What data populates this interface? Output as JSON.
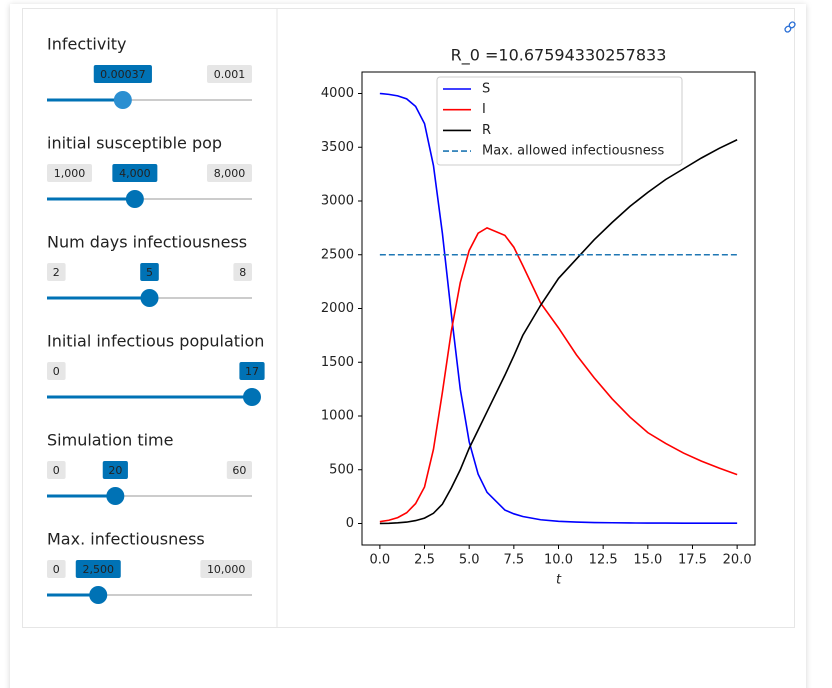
{
  "sliders": [
    {
      "label": "Infectivity",
      "min": 0,
      "max": 0.001,
      "value": 0.00037,
      "hidden": [
        "min"
      ],
      "focused": true
    },
    {
      "label": "initial susceptible pop",
      "min": {
        "value": 1000,
        "label": "1,000"
      },
      "max": {
        "value": 8000,
        "label": "8,000"
      },
      "value": {
        "value": 4000,
        "label": "4,000"
      }
    },
    {
      "label": "Num days infectiousness",
      "min": 2,
      "max": 8,
      "value": 5
    },
    {
      "label": "Initial infectious population",
      "min": 0,
      "max": 17,
      "value": 17,
      "hidden": [
        "max"
      ]
    },
    {
      "label": "Simulation time",
      "min": 0,
      "max": 60,
      "value": 20
    },
    {
      "label": "Max. infectiousness",
      "min": 0,
      "max": {
        "value": 10000,
        "label": "10,000"
      },
      "value": {
        "value": 2500,
        "label": "2,500"
      }
    }
  ],
  "chart_data": {
    "type": "line",
    "title": "R_0 =10.67594330257833",
    "xlabel": "t",
    "x": [
      0,
      0.5,
      1,
      1.5,
      2,
      2.5,
      3,
      3.5,
      4,
      4.5,
      5,
      5.5,
      6,
      7,
      7.5,
      8,
      9,
      10,
      11,
      12,
      13,
      14,
      15,
      16,
      17,
      18,
      19,
      20
    ],
    "series": [
      {
        "name": "S",
        "color": "#0000ff",
        "values": [
          4000,
          3992,
          3978,
          3950,
          3880,
          3720,
          3330,
          2700,
          1950,
          1250,
          760,
          460,
          290,
          125,
          90,
          65,
          35,
          20,
          13,
          9,
          7,
          5,
          4,
          4,
          3,
          3,
          3,
          3
        ]
      },
      {
        "name": "I",
        "color": "#ff0000",
        "values": [
          17,
          30,
          55,
          100,
          185,
          340,
          690,
          1220,
          1790,
          2240,
          2540,
          2700,
          2750,
          2680,
          2570,
          2400,
          2050,
          1820,
          1570,
          1355,
          1160,
          990,
          845,
          745,
          655,
          580,
          515,
          455
        ]
      },
      {
        "name": "R",
        "color": "#000000",
        "values": [
          0,
          2,
          6,
          13,
          27,
          50,
          95,
          180,
          330,
          500,
          700,
          870,
          1040,
          1380,
          1560,
          1750,
          2030,
          2280,
          2460,
          2640,
          2800,
          2950,
          3080,
          3200,
          3300,
          3400,
          3490,
          3570
        ]
      }
    ],
    "hline": {
      "name": "Max. allowed infectiousness",
      "value": 2500,
      "color": "#1f77b4",
      "dashed": true
    },
    "xlim": [
      -1,
      21
    ],
    "ylim": [
      -200,
      4200
    ],
    "xticks": [
      {
        "value": 0,
        "label": "0.0"
      },
      2.5,
      {
        "value": 5,
        "label": "5.0"
      },
      7.5,
      {
        "value": 10,
        "label": "10.0"
      },
      12.5,
      {
        "value": 15,
        "label": "15.0"
      },
      17.5,
      {
        "value": 20,
        "label": "20.0"
      }
    ],
    "yticks": [
      0,
      500,
      1000,
      1500,
      2000,
      2500,
      3000,
      3500,
      4000
    ],
    "legend": "upper center"
  }
}
